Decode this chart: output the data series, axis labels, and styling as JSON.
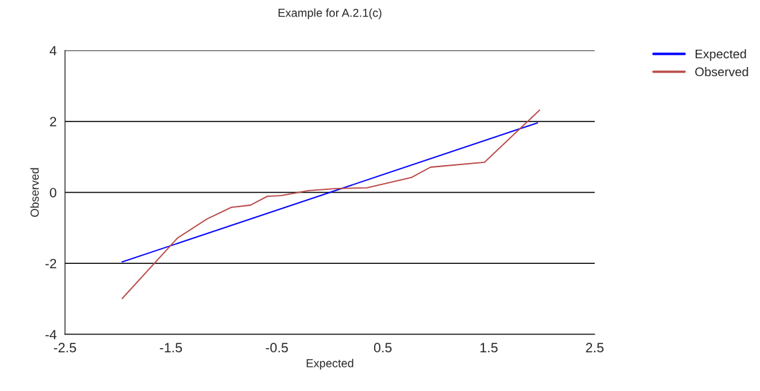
{
  "chart_data": {
    "type": "line",
    "title": "Example for A.2.1(c)",
    "xlabel": "Expected",
    "ylabel": "Observed",
    "series": [
      {
        "name": "Expected",
        "color": "#0000ff",
        "x": [
          -1.96,
          1.96
        ],
        "values": [
          -1.96,
          1.96
        ]
      },
      {
        "name": "Observed",
        "color": "#b94a48",
        "x": [
          -1.96,
          -1.44,
          -1.16,
          -0.93,
          -0.75,
          -0.59,
          -0.46,
          -0.2,
          0.07,
          0.35,
          0.77,
          0.95,
          1.46,
          1.98
        ],
        "values": [
          -2.99,
          -1.29,
          -0.75,
          -0.42,
          -0.36,
          -0.11,
          -0.09,
          0.05,
          0.11,
          0.13,
          0.42,
          0.71,
          0.85,
          2.32
        ]
      }
    ],
    "xlim": [
      -2.5,
      2.5
    ],
    "xticks": [
      -2.5,
      -1.5,
      -0.5,
      0.5,
      1.5,
      2.5
    ],
    "ylim": [
      -4,
      4
    ],
    "yticks": [
      -4,
      -2,
      0,
      2,
      4
    ],
    "grid": "y",
    "legend": "top right",
    "marker": "none",
    "line_style": "solid"
  }
}
